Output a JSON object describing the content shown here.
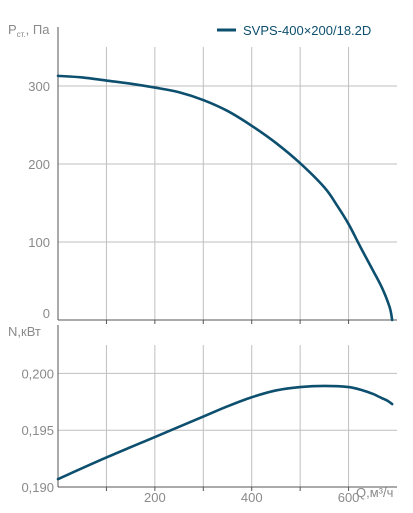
{
  "legend": {
    "label": "SVPS-400×200/18.2D"
  },
  "colors": {
    "curve": "#0d4f6e",
    "grid": "#bfbfbf",
    "axis": "#555555",
    "text": "#8a8a8a"
  },
  "chart_data": [
    {
      "type": "line",
      "ylabel_main": "P",
      "ylabel_sub": "ст.",
      "ylabel_unit": ", Па",
      "xlim": [
        0,
        700
      ],
      "ylim": [
        0,
        350
      ],
      "xticks": [
        100,
        200,
        300,
        400,
        500,
        600
      ],
      "yticks": [
        0,
        100,
        200,
        300
      ],
      "ytick_labels": [
        "0",
        "100",
        "200",
        "300"
      ],
      "grid": true,
      "legend_position": "top-right",
      "series": [
        {
          "name": "SVPS-400×200/18.2D",
          "x": [
            0,
            50,
            100,
            150,
            200,
            250,
            300,
            350,
            400,
            450,
            500,
            550,
            575,
            600,
            625,
            650,
            670,
            685,
            690
          ],
          "y": [
            313,
            311,
            307,
            303,
            298,
            292,
            282,
            268,
            249,
            227,
            201,
            170,
            148,
            123,
            93,
            64,
            40,
            16,
            0
          ]
        }
      ]
    },
    {
      "type": "line",
      "ylabel": "N,кВт",
      "xlabel": "Q,м³/ч",
      "xlim": [
        0,
        700
      ],
      "ylim": [
        0.19,
        0.2025
      ],
      "xticks": [
        100,
        200,
        300,
        400,
        500,
        600
      ],
      "xtick_labels": [
        "200",
        "400",
        "600"
      ],
      "xtick_label_values": [
        200,
        400,
        600
      ],
      "yticks": [
        0.19,
        0.195,
        0.2
      ],
      "ytick_labels": [
        "0,190",
        "0,195",
        "0,200"
      ],
      "grid": true,
      "series": [
        {
          "name": "SVPS-400×200/18.2D",
          "x": [
            0,
            100,
            200,
            300,
            350,
            400,
            450,
            500,
            550,
            600,
            630,
            650,
            660,
            670,
            680,
            690
          ],
          "y": [
            0.1907,
            0.1926,
            0.1944,
            0.1962,
            0.1971,
            0.1979,
            0.1985,
            0.1988,
            0.1989,
            0.1988,
            0.1985,
            0.1982,
            0.198,
            0.1978,
            0.1976,
            0.1973
          ]
        }
      ]
    }
  ]
}
